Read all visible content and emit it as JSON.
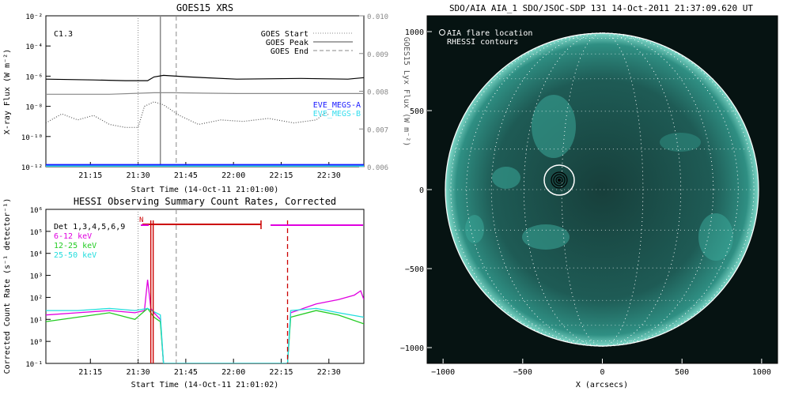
{
  "goes_panel": {
    "title": "GOES15 XRS",
    "xlabel": "Start Time (14-Oct-11 21:01:00)",
    "ylabel_left": "X-ray Flux (W m⁻²)",
    "ylabel_right": "GOES15 Lyx Flux (W m⁻²)",
    "class_label": "C1.3",
    "legend": [
      {
        "label": "GOES Start",
        "style": "dotted",
        "color": "#888888"
      },
      {
        "label": "GOES Peak",
        "style": "solid",
        "color": "#888888"
      },
      {
        "label": "GOES End",
        "style": "dashed",
        "color": "#888888"
      }
    ],
    "eve_labels": [
      {
        "label": "EVE_MEGS-A",
        "color": "#1a1aff"
      },
      {
        "label": "EVE_MEGS-B",
        "color": "#33ddee"
      }
    ]
  },
  "hessi_panel": {
    "title": "HESSI Observing Summary Count Rates, Corrected",
    "xlabel": "Start Time (14-Oct-11 21:01:02)",
    "ylabel": "Corrected Count Rate (s⁻¹ detector⁻¹)",
    "flag_label": "N",
    "legend": [
      {
        "label": "Det 1,3,4,5,6,9",
        "color": "#000000"
      },
      {
        "label": "6-12 keV",
        "color": "#e000e0"
      },
      {
        "label": "12-25 keV",
        "color": "#22cc22"
      },
      {
        "label": "25-50 keV",
        "color": "#22dddd"
      }
    ]
  },
  "aia_panel": {
    "title": "SDO/AIA AIA_1 SDO/JSOC-SDP 131 14-Oct-2011 21:37:09.620 UT",
    "xlabel": "X (arcsecs)",
    "legend_lines": [
      "AIA flare location",
      "RHESSI contours"
    ],
    "disk_color": "#1e6b63",
    "limb_color": "#7fd8c8"
  },
  "chart_data": [
    {
      "type": "line",
      "name": "goes_xrs",
      "title": "GOES15 XRS",
      "xlabel": "Start Time (14-Oct-11 21:01:00)",
      "x_ticks": [
        "21:15",
        "21:30",
        "21:45",
        "22:00",
        "22:15",
        "22:30"
      ],
      "x_tick_minutes": [
        14,
        29,
        44,
        59,
        74,
        89
      ],
      "xlim_minutes": [
        0,
        100
      ],
      "ylim_log10": [
        -12,
        -2
      ],
      "y_ticks": [
        "10⁻²",
        "10⁻⁴",
        "10⁻⁶",
        "10⁻⁸",
        "10⁻¹⁰",
        "10⁻¹²"
      ],
      "y_tick_log10": [
        -2,
        -4,
        -6,
        -8,
        -10,
        -12
      ],
      "y2lim": [
        0.006,
        0.01
      ],
      "y2_ticks": [
        "0.010",
        "0.009",
        "0.008",
        "0.007",
        "0.006"
      ],
      "y2_tick_values": [
        0.01,
        0.009,
        0.008,
        0.007,
        0.006
      ],
      "markers_minutes": {
        "start": 29,
        "peak": 36,
        "end": 41
      },
      "series": [
        {
          "name": "GOES long (1-8 A)",
          "color": "#000000",
          "log10_flux": [
            [
              0,
              -6.2
            ],
            [
              15,
              -6.25
            ],
            [
              25,
              -6.3
            ],
            [
              32,
              -6.3
            ],
            [
              34,
              -6.05
            ],
            [
              37,
              -5.95
            ],
            [
              45,
              -6.05
            ],
            [
              60,
              -6.2
            ],
            [
              80,
              -6.15
            ],
            [
              95,
              -6.2
            ],
            [
              100,
              -6.1
            ]
          ]
        },
        {
          "name": "Ly-alpha",
          "color": "#888888",
          "log10_flux": [
            [
              0,
              -7.2
            ],
            [
              20,
              -7.2
            ],
            [
              34,
              -7.1
            ],
            [
              40,
              -7.1
            ],
            [
              60,
              -7.15
            ],
            [
              100,
              -7.15
            ]
          ]
        },
        {
          "name": "GOES short (0.5-4 A)",
          "color": "#555555",
          "style": "dotted",
          "log10_flux": [
            [
              0,
              -9.1
            ],
            [
              5,
              -8.5
            ],
            [
              10,
              -8.9
            ],
            [
              15,
              -8.6
            ],
            [
              20,
              -9.2
            ],
            [
              25,
              -9.4
            ],
            [
              29,
              -9.4
            ],
            [
              31,
              -8.0
            ],
            [
              34,
              -7.7
            ],
            [
              37,
              -7.9
            ],
            [
              42,
              -8.6
            ],
            [
              48,
              -9.2
            ],
            [
              55,
              -8.9
            ],
            [
              62,
              -9.0
            ],
            [
              70,
              -8.8
            ],
            [
              78,
              -9.1
            ],
            [
              85,
              -8.9
            ],
            [
              88,
              -8.4
            ],
            [
              89,
              -8.6
            ]
          ]
        },
        {
          "name": "EVE_MEGS-A",
          "color": "#1a1aff",
          "log10_flux": [
            [
              0,
              -11.9
            ],
            [
              100,
              -11.9
            ]
          ]
        },
        {
          "name": "EVE_MEGS-B",
          "color": "#33ddee",
          "log10_flux": [
            [
              0,
              -12.0
            ],
            [
              100,
              -12.0
            ]
          ]
        }
      ]
    },
    {
      "type": "line",
      "name": "hessi_count_rates",
      "title": "HESSI Observing Summary Count Rates, Corrected",
      "xlabel": "Start Time (14-Oct-11 21:01:02)",
      "x_ticks": [
        "21:15",
        "21:30",
        "21:45",
        "22:00",
        "22:15",
        "22:30"
      ],
      "x_tick_minutes": [
        14,
        29,
        44,
        59,
        74,
        89
      ],
      "xlim_minutes": [
        0,
        100
      ],
      "ylim_log10": [
        -1,
        6
      ],
      "y_ticks": [
        "10⁶",
        "10⁵",
        "10⁴",
        "10³",
        "10²",
        "10¹",
        "10⁰",
        "10⁻¹"
      ],
      "y_tick_log10": [
        6,
        5,
        4,
        3,
        2,
        1,
        0,
        -1
      ],
      "markers_minutes": {
        "start": 29,
        "peak": 33,
        "dashed_gray": 41,
        "dashed_red": 76
      },
      "series": [
        {
          "name": "6-12 keV",
          "color": "#e000e0",
          "log10_rate": [
            [
              0,
              1.2
            ],
            [
              10,
              1.3
            ],
            [
              20,
              1.4
            ],
            [
              28,
              1.3
            ],
            [
              31,
              1.4
            ],
            [
              32,
              2.8
            ],
            [
              33,
              1.5
            ],
            [
              34,
              1.3
            ],
            [
              36,
              1.0
            ],
            [
              37,
              -1
            ],
            [
              76,
              -1
            ],
            [
              77,
              1.3
            ],
            [
              85,
              1.7
            ],
            [
              92,
              1.9
            ],
            [
              97,
              2.1
            ],
            [
              99,
              2.3
            ],
            [
              100,
              1.9
            ]
          ]
        },
        {
          "name": "12-25 keV",
          "color": "#22cc22",
          "log10_rate": [
            [
              0,
              0.9
            ],
            [
              10,
              1.1
            ],
            [
              20,
              1.3
            ],
            [
              28,
              1.0
            ],
            [
              32,
              1.5
            ],
            [
              34,
              1.1
            ],
            [
              36,
              0.9
            ],
            [
              37,
              -1
            ],
            [
              76,
              -1
            ],
            [
              77,
              1.1
            ],
            [
              85,
              1.4
            ],
            [
              92,
              1.2
            ],
            [
              100,
              0.8
            ]
          ]
        },
        {
          "name": "25-50 keV",
          "color": "#22dddd",
          "log10_rate": [
            [
              0,
              1.4
            ],
            [
              10,
              1.4
            ],
            [
              20,
              1.5
            ],
            [
              28,
              1.4
            ],
            [
              32,
              1.5
            ],
            [
              36,
              1.2
            ],
            [
              37,
              -1
            ],
            [
              76,
              -1
            ],
            [
              77,
              1.4
            ],
            [
              85,
              1.5
            ],
            [
              92,
              1.3
            ],
            [
              100,
              1.1
            ]
          ]
        }
      ]
    },
    {
      "type": "scatter",
      "name": "aia_131_image",
      "title": "SDO/AIA AIA_1 SDO/JSOC-SDP 131 14-Oct-2011 21:37:09.620 UT",
      "xlabel": "X (arcsecs)",
      "xlim": [
        -1100,
        1100
      ],
      "ylim": [
        -1100,
        1100
      ],
      "x_ticks": [
        "−1000",
        "−500",
        "0",
        "500",
        "1000"
      ],
      "x_tick_values": [
        -1000,
        -500,
        0,
        500,
        1000
      ],
      "y_ticks": [
        "1000",
        "500",
        "0",
        "−500",
        "−1000"
      ],
      "y_tick_values": [
        1000,
        500,
        0,
        -500,
        -1000
      ],
      "solar_radius_arcsec": 985,
      "flare_location": [
        -270,
        50
      ],
      "flare_circle_radius": 95
    }
  ]
}
